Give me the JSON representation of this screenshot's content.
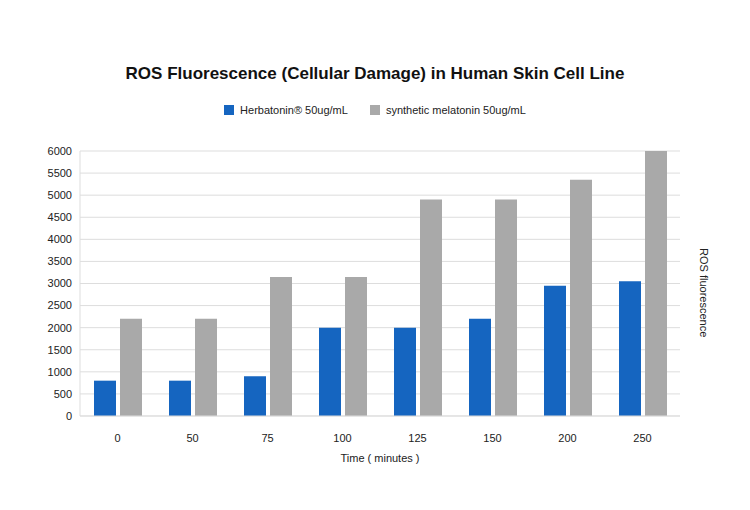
{
  "chart_data": {
    "type": "bar",
    "title": "ROS Fluorescence (Cellular Damage) in Human Skin Cell Line",
    "x_label": "Time ( minutes )",
    "y_label": "ROS fluorescence",
    "categories": [
      "0",
      "50",
      "75",
      "100",
      "125",
      "150",
      "200",
      "250"
    ],
    "series": [
      {
        "name": "Herbatonin® 50ug/mL",
        "color": "#1565c0",
        "values": [
          800,
          800,
          900,
          2000,
          2000,
          2200,
          2950,
          3050
        ]
      },
      {
        "name": "synthetic melatonin 50ug/mL",
        "color": "#a9a9a9",
        "values": [
          2200,
          2200,
          3150,
          3150,
          4900,
          4900,
          5350,
          6000
        ]
      }
    ],
    "ylim": [
      0,
      6000
    ],
    "yticks": [
      0,
      500,
      1000,
      1500,
      2000,
      2500,
      3000,
      3500,
      4000,
      4500,
      5000,
      5500,
      6000
    ],
    "grid": true,
    "legend": "top"
  }
}
